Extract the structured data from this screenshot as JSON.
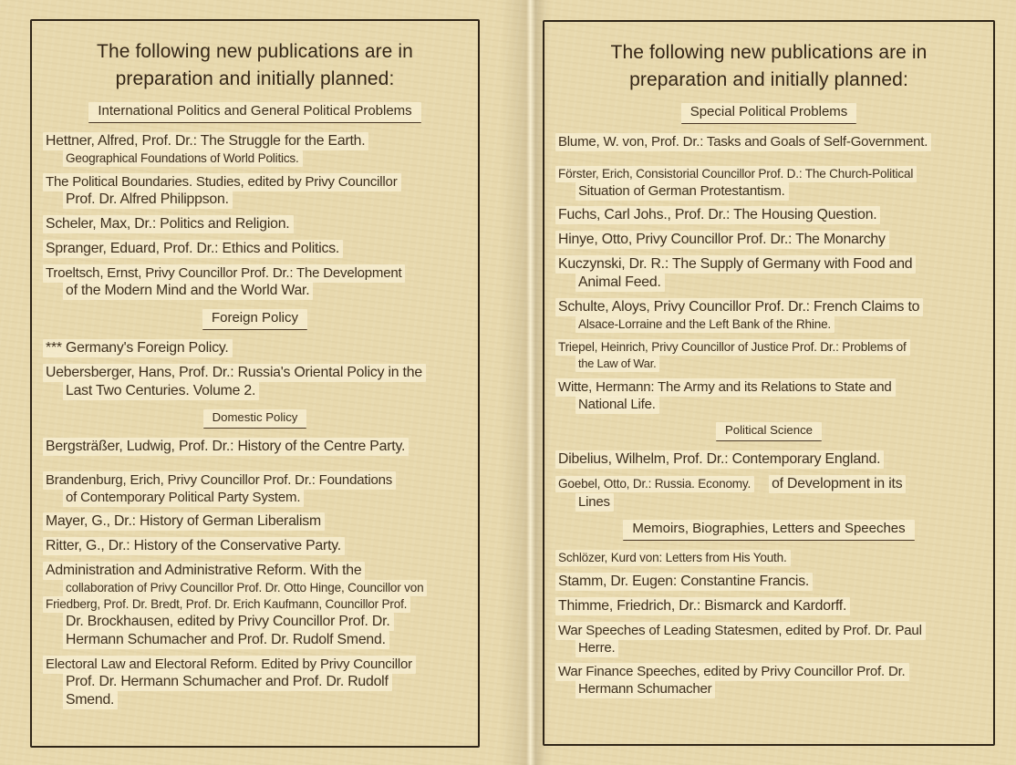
{
  "colors": {
    "paper": "#e8d9ae",
    "ink": "#3e2f1d",
    "highlight_patch": "#f8f0d5",
    "box_border": "#2f2518"
  },
  "pages": [
    {
      "title": "The following new publications are in preparation and initially planned:",
      "sections": [
        {
          "heading": "International Politics and General Political Problems",
          "heading_size": "md",
          "entries": [
            {
              "lines": [
                {
                  "text": "Hettner, Alfred, Prof. Dr.: The Struggle for the Earth.",
                  "size": "lg"
                },
                {
                  "text": "Geographical Foundations of World Politics.",
                  "size": "sm",
                  "indent": true
                }
              ]
            },
            {
              "lines": [
                {
                  "text": "The Political Boundaries. Studies, edited by Privy Councillor",
                  "size": "md"
                },
                {
                  "text": "Prof. Dr. Alfred Philippson.",
                  "size": "lg",
                  "indent": true
                }
              ]
            },
            {
              "lines": [
                {
                  "text": "Scheler, Max, Dr.: Politics and Religion.",
                  "size": "lg"
                }
              ]
            },
            {
              "lines": [
                {
                  "text": "Spranger, Eduard, Prof. Dr.: Ethics and Politics.",
                  "size": "lg"
                }
              ]
            },
            {
              "lines": [
                {
                  "text": "Troeltsch, Ernst, Privy Councillor Prof. Dr.: The Development",
                  "size": "md"
                },
                {
                  "text": "of the Modern Mind and the World War.",
                  "size": "lg",
                  "indent": true
                }
              ]
            }
          ]
        },
        {
          "heading": "Foreign Policy",
          "heading_size": "md",
          "entries": [
            {
              "lines": [
                {
                  "text": "*** Germany's Foreign Policy.",
                  "size": "lg"
                }
              ]
            },
            {
              "lines": [
                {
                  "text": "Uebersberger, Hans, Prof. Dr.: Russia's Oriental Policy in the",
                  "size": "lg"
                },
                {
                  "text": "Last Two Centuries. Volume 2.",
                  "size": "lg",
                  "indent": true
                }
              ]
            }
          ]
        },
        {
          "heading": "Domestic Policy",
          "heading_size": "sm",
          "entries": [
            {
              "lines": [
                {
                  "text": "Bergsträßer, Ludwig, Prof. Dr.: History of the Centre Party.",
                  "size": "lg"
                }
              ]
            },
            {
              "gap": true,
              "lines": [
                {
                  "text": "Brandenburg, Erich, Privy Councillor Prof. Dr.: Foundations",
                  "size": "md"
                },
                {
                  "text": "of Contemporary Political Party System.",
                  "size": "md",
                  "indent": true
                }
              ]
            },
            {
              "lines": [
                {
                  "text": "Mayer, G., Dr.: History of German Liberalism",
                  "size": "lg"
                }
              ]
            },
            {
              "lines": [
                {
                  "text": "Ritter, G., Dr.: History of the Conservative Party.",
                  "size": "lg"
                }
              ]
            },
            {
              "lines": [
                {
                  "text": "Administration and Administrative Reform. With the",
                  "size": "lg"
                },
                {
                  "text": "collaboration of Privy Councillor Prof. Dr. Otto Hinge, Councillor von",
                  "size": "sm",
                  "indent": true
                },
                {
                  "text": "Friedberg, Prof. Dr. Bredt, Prof. Dr. Erich Kaufmann, Councillor Prof.",
                  "size": "sm"
                },
                {
                  "text": "Dr. Brockhausen, edited by Privy Councillor Prof. Dr.",
                  "size": "lg",
                  "indent": true
                },
                {
                  "text": "Hermann Schumacher and Prof. Dr. Rudolf Smend.",
                  "size": "lg",
                  "indent": true
                }
              ]
            },
            {
              "lines": [
                {
                  "text": "Electoral Law and Electoral Reform. Edited by Privy Councillor",
                  "size": "md"
                },
                {
                  "text": "Prof. Dr. Hermann Schumacher and Prof. Dr. Rudolf",
                  "size": "lg",
                  "indent": true
                },
                {
                  "text": "Smend.",
                  "size": "lg",
                  "indent": true
                }
              ]
            }
          ]
        }
      ]
    },
    {
      "title": "The following new publications are in preparation and initially planned:",
      "sections": [
        {
          "heading": "Special Political Problems",
          "heading_size": "md",
          "entries": [
            {
              "lines": [
                {
                  "text": "Blume, W. von, Prof. Dr.: Tasks and Goals of Self-Government.",
                  "size": "md"
                }
              ]
            },
            {
              "gap": true,
              "lines": [
                {
                  "text": "Förster, Erich, Consistorial Councillor Prof. D.: The Church-Political",
                  "size": "sm"
                },
                {
                  "text": "Situation of German Protestantism.",
                  "size": "md",
                  "indent": true
                }
              ]
            },
            {
              "lines": [
                {
                  "text": "Fuchs, Carl Johs., Prof. Dr.: The Housing Question.",
                  "size": "lg"
                }
              ]
            },
            {
              "lines": [
                {
                  "text": "Hinye, Otto, Privy Councillor Prof. Dr.: The Monarchy",
                  "size": "lg"
                }
              ]
            },
            {
              "lines": [
                {
                  "text": "Kuczynski, Dr. R.: The Supply of Germany with Food and",
                  "size": "lg"
                },
                {
                  "text": "Animal Feed.",
                  "size": "lg",
                  "indent": true
                }
              ]
            },
            {
              "lines": [
                {
                  "text": "Schulte, Aloys, Privy Councillor Prof. Dr.: French Claims to",
                  "size": "lg"
                },
                {
                  "text": "Alsace-Lorraine and the Left Bank of the Rhine.",
                  "size": "sm",
                  "indent": true
                }
              ]
            },
            {
              "lines": [
                {
                  "text": "Triepel, Heinrich, Privy Councillor of Justice Prof. Dr.: Problems of",
                  "size": "sm"
                },
                {
                  "text": "the Law of War.",
                  "size": "xs",
                  "indent": true
                }
              ]
            },
            {
              "lines": [
                {
                  "text": "Witte, Hermann: The Army and its Relations to State and",
                  "size": "md"
                },
                {
                  "text": "National Life.",
                  "size": "md",
                  "indent": true
                }
              ]
            }
          ]
        },
        {
          "heading": "Political Science",
          "heading_size": "sm",
          "entries": [
            {
              "lines": [
                {
                  "text": "Dibelius, Wilhelm, Prof. Dr.: Contemporary England.",
                  "size": "lg"
                }
              ]
            },
            {
              "lines": [
                {
                  "parts": [
                    {
                      "text": "Goebel, Otto, Dr.: Russia. Economy.",
                      "size": "sm"
                    },
                    {
                      "text": "of Development in its",
                      "size": "lg"
                    }
                  ]
                },
                {
                  "text": "Lines",
                  "size": "md",
                  "indent": true
                }
              ]
            }
          ]
        },
        {
          "heading": "Memoirs, Biographies, Letters and Speeches",
          "heading_size": "md",
          "entries": [
            {
              "lines": [
                {
                  "text": "Schlözer, Kurd von: Letters from His Youth.",
                  "size": "sm"
                }
              ]
            },
            {
              "lines": [
                {
                  "text": "Stamm, Dr. Eugen: Constantine Francis.",
                  "size": "lg"
                }
              ]
            },
            {
              "lines": [
                {
                  "text": "Thimme, Friedrich, Dr.: Bismarck and Kardorff.",
                  "size": "lg"
                }
              ]
            },
            {
              "lines": [
                {
                  "text": "War Speeches of Leading Statesmen, edited by Prof. Dr. Paul",
                  "size": "md"
                },
                {
                  "text": "Herre.",
                  "size": "md",
                  "indent": true
                }
              ]
            },
            {
              "lines": [
                {
                  "text": "War Finance Speeches, edited by Privy Councillor Prof. Dr.",
                  "size": "md"
                },
                {
                  "text": "Hermann Schumacher",
                  "size": "md",
                  "indent": true
                }
              ]
            }
          ]
        }
      ]
    }
  ]
}
